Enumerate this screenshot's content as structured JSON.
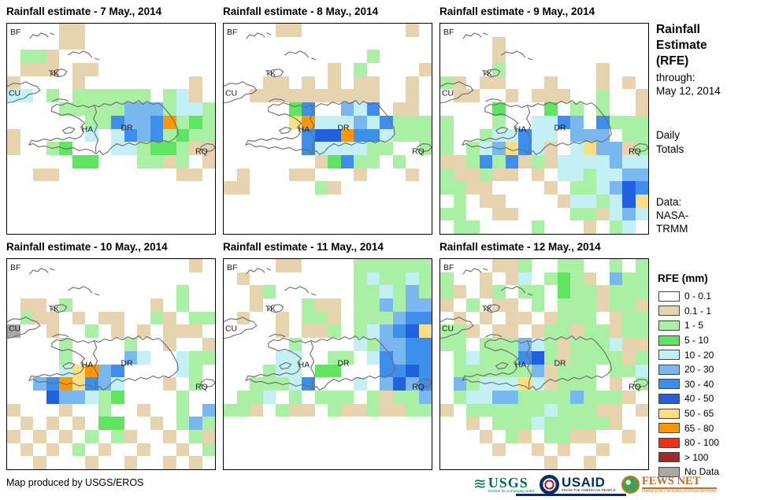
{
  "panels": [
    {
      "title": "Rainfall estimate - 7 May., 2014",
      "grid": [
        "....tt..........",
        "....tt..........",
        ".ggt............",
        ".ttt.tt.........",
        "t....t........t.",
        "cc.g.gggggg.gct.",
        "....gggggbbbgccg",
        "......ggBbbBogGg",
        "t.....c.cBbBgGgg",
        "t..gG...ccgGGgtt",
        ".....GG...ggtg.t",
        "..tt.........tt.",
        "................",
        "................",
        "................",
        "................"
      ]
    },
    {
      "title": "Rainfall estimate - 8 May., 2014",
      "grid": [
        "....tt........t.",
        "................",
        "...........g....",
        "........t.g....t",
        "...tt.t.t.tt..t.",
        "..tttttttttt..t.",
        ".....GB..bcB.tt.",
        ".....yocccbcBggg",
        "......BDDoBBcggg",
        "......Bccccgg..g",
        ".......tGBgg.g..",
        ".t...tt...t...t.",
        "tt.....gt.......",
        "................",
        "................",
        "................"
      ]
    },
    {
      "title": "Rainfall estimate - 9 May., 2014",
      "grid": [
        "................",
        "....t...........",
        "....t...........",
        "....g.......t...",
        "gt.tt...t...t.t.",
        ".tt..t.ttt..g..t",
        "....G...G.g.g..t",
        "g...g..ccBb.Bggg",
        "g..gccBcc.bbb.gg",
        "g.gcbyBct.cybbtg",
        "ttgBgBtgtccccbcc",
        "gttgtt.t.ccgccbb",
        "ggtt....t.ggcbDB",
        ".g.tt....tccgcDy",
        "gg..tt....ggtcbc",
        ".gg....g...t.gc."
      ]
    },
    {
      "title": "Rainfall estimate - 10 May., 2014",
      "grid": [
        "..............t.",
        "................",
        ".............g..",
        ".tt.g......t.g..",
        ".gtt.t.tt..gt.gg",
        "n..t..g.t.t.ttt.",
        "....g....g..t..t",
        "....g....bc..cgg",
        "....cyobB....cg.",
        "..bBoyBbc...t.g.",
        "...DbbcgG....g..",
        "t...t..g..t..g.b",
        ".t.t.t.GG..t.gbg",
        "t.t.t.g.gt..t.gt",
        ".t.t.g.t..t..t.g",
        "..t...t..t..t.t."
      ]
    },
    {
      "title": "Rainfall estimate - 11 May., 2014",
      "grid": [
        "....tt....gggggg",
        ".t........gcggcg",
        "..tg......ggcgbg",
        "..t...gtt.ggbgbb",
        ".t..t.ggt.gggbBB",
        "....t.ttg.gcbBDy",
        ".....g....cgbbBB",
        "....cc..gg.cBbBB",
        "...gcc.GG...BBDB",
        "..gggcB...c.bDbB",
        ".ggc.g.ggg.gtggb",
        "ggt.gtt.gttgttgg",
        "................",
        "................",
        "................",
        "................"
      ]
    },
    {
      "title": "Rainfall estimate - 12 May., 2014",
      "grid": [
        "....ttg..gg..g.g",
        "g..t.tc.gGgt.bgg",
        "gt.tg.gg.Gggtggg",
        "t.g.tt.g.gggtggt",
        ".t.t.tt.tggg.tgg",
        "ggt.tt.tggtggtgg",
        "gg.gggbcgtgggctt",
        ".gcgggBDgtggggtg",
        ".ggggggbtggg.ggc",
        ".bgcccyctggg.t.g",
        ".gccbbggggbgggt.",
        "t.ggggggcgggtt.t",
        "..t.gggcgggggt..",
        "...t.gt.ggtt..t.",
        "....t..t.t..t...",
        "........t..t...."
      ]
    }
  ],
  "map_labels": {
    "bf": "BF",
    "tk": "TK",
    "cu": "CU",
    "ha": "HA",
    "dr": "DR",
    "rq": "RQ"
  },
  "palette": {
    ".": "#FFFFFF",
    "t": "#E7D4AF",
    "g": "#A9EFA4",
    "G": "#5FE55F",
    "c": "#C2F0F5",
    "b": "#79B8EF",
    "B": "#3E8EEC",
    "D": "#2160DE",
    "y": "#F9DE83",
    "o": "#FB9703",
    "r": "#FA2E0C",
    "m": "#A32629",
    "n": "#A8A8A8"
  },
  "sidebar": {
    "title_lines": [
      "Rainfall",
      "Estimate",
      "(RFE)"
    ],
    "through_label": "through:",
    "through_date": "May 12, 2014",
    "totals_lines": [
      "Daily",
      "Totals"
    ],
    "data_label": "Data:",
    "data_source_lines": [
      "NASA-",
      "TRMM"
    ]
  },
  "legend": {
    "title": "RFE (mm)",
    "items": [
      {
        "label": "0 - 0.1",
        "color": "#FFFFFF"
      },
      {
        "label": "0.1 - 1",
        "color": "#E7D4AF"
      },
      {
        "label": "1 - 5",
        "color": "#A9EFA4"
      },
      {
        "label": "5 - 10",
        "color": "#5FE55F"
      },
      {
        "label": "10 - 20",
        "color": "#C2F0F5"
      },
      {
        "label": "20 - 30",
        "color": "#79B8EF"
      },
      {
        "label": "30 - 40",
        "color": "#3E8EEC"
      },
      {
        "label": "40 - 50",
        "color": "#2160DE"
      },
      {
        "label": "50 - 65",
        "color": "#F9DE83"
      },
      {
        "label": "65 - 80",
        "color": "#FB9703"
      },
      {
        "label": "80 - 100",
        "color": "#FA2E0C"
      },
      {
        "label": "> 100",
        "color": "#A32629"
      },
      {
        "label": "No Data",
        "color": "#A8A8A8"
      }
    ]
  },
  "footer": {
    "credit": "Map produced by USGS/EROS",
    "logos": {
      "usgs": {
        "name": "USGS",
        "tagline": "science for a changing world"
      },
      "usaid": {
        "name": "USAID",
        "tagline": "FROM THE AMERICAN PEOPLE"
      },
      "fewsnet": {
        "name": "FEWS NET",
        "tagline": "FAMINE EARLY WARNING SYSTEMS NETWORK"
      }
    }
  }
}
